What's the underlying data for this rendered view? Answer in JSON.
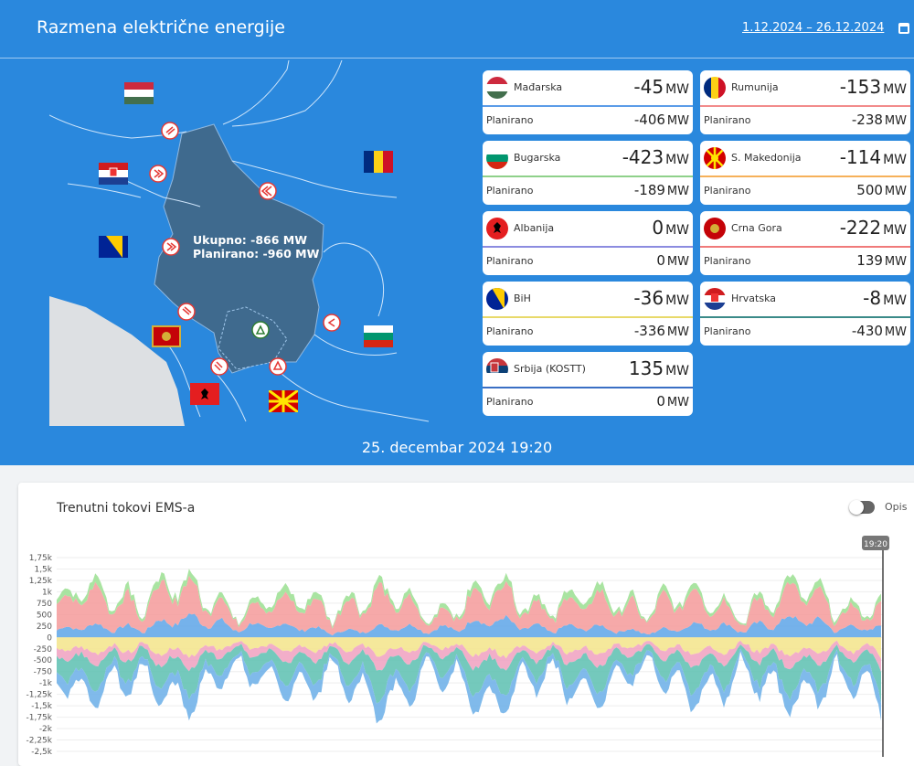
{
  "header": {
    "title": "Razmena električne energije",
    "date_range": "1.12.2024 – 26.12.2024"
  },
  "map": {
    "total_label": "Ukupno: -866 MW",
    "planned_label": "Planirano: -960 MW"
  },
  "cards": [
    {
      "country": "Mađarska",
      "value": "-45",
      "unit": "MW",
      "planned_label": "Planirano",
      "planned": "-406",
      "line_color": "#5b9ce8"
    },
    {
      "country": "Rumunija",
      "value": "-153",
      "unit": "MW",
      "planned_label": "Planirano",
      "planned": "-238",
      "line_color": "#f28b8b"
    },
    {
      "country": "Bugarska",
      "value": "-423",
      "unit": "MW",
      "planned_label": "Planirano",
      "planned": "-189",
      "line_color": "#8fd18a"
    },
    {
      "country": "S. Makedonija",
      "value": "-114",
      "unit": "MW",
      "planned_label": "Planirano",
      "planned": "500",
      "line_color": "#f6b15a"
    },
    {
      "country": "Albanija",
      "value": "0",
      "unit": "MW",
      "planned_label": "Planirano",
      "planned": "0",
      "line_color": "#8c8ce0"
    },
    {
      "country": "Crna Gora",
      "value": "-222",
      "unit": "MW",
      "planned_label": "Planirano",
      "planned": "139",
      "line_color": "#f07a7a"
    },
    {
      "country": "BiH",
      "value": "-36",
      "unit": "MW",
      "planned_label": "Planirano",
      "planned": "-336",
      "line_color": "#e8d96a"
    },
    {
      "country": "Hrvatska",
      "value": "-8",
      "unit": "MW",
      "planned_label": "Planirano",
      "planned": "-430",
      "line_color": "#3a8a88"
    },
    {
      "country": "Srbija (KOSTT)",
      "value": "135",
      "unit": "MW",
      "planned_label": "Planirano",
      "planned": "0",
      "line_color": "#3a6fc4"
    }
  ],
  "footer_time": "25. decembar 2024 19:20",
  "chart_section": {
    "title": "Trenutni tokovi EMS-a",
    "toggle_label": "Opis",
    "cursor_label": "19:20"
  },
  "chart_data": {
    "type": "area",
    "y_ticks": [
      "1,75k",
      "1,5k",
      "1,25k",
      "1k",
      "750",
      "500",
      "250",
      "0",
      "-250",
      "-500",
      "-750",
      "-1k",
      "-1,25k",
      "-1,5k",
      "-1,75k",
      "-2k",
      "-2,25k",
      "-2,5k"
    ],
    "ylim": [
      -2500,
      1750
    ],
    "series": [
      {
        "color": "#5da5e8",
        "values": [
          150,
          250,
          350,
          200,
          150,
          220,
          300,
          180,
          150,
          250,
          320,
          200
        ]
      },
      {
        "color": "#f59a9a",
        "values": [
          500,
          700,
          450,
          400,
          650,
          350,
          550,
          450,
          600,
          400,
          500,
          350
        ]
      },
      {
        "color": "#9adf90",
        "values": [
          100,
          150,
          80,
          120,
          100,
          90,
          110,
          130,
          100,
          80,
          120,
          100
        ]
      },
      {
        "color": "#f3e48a",
        "values": [
          -200,
          -300,
          -250,
          -200,
          -280,
          -220,
          -300,
          -250,
          -220,
          -280,
          -260,
          -300
        ]
      },
      {
        "color": "#f0a0c0",
        "values": [
          -150,
          -200,
          -180,
          -150,
          -220,
          -170,
          -200,
          -180,
          -160,
          -200,
          -190,
          -210
        ]
      },
      {
        "color": "#5cc0b0",
        "values": [
          -300,
          -400,
          -350,
          -300,
          -450,
          -380,
          -420,
          -350,
          -330,
          -400,
          -380,
          -500
        ]
      },
      {
        "color": "#6aaee8",
        "values": [
          -200,
          -300,
          -250,
          -200,
          -300,
          -250,
          -280,
          -220,
          -200,
          -260,
          -240,
          -300
        ]
      }
    ]
  }
}
